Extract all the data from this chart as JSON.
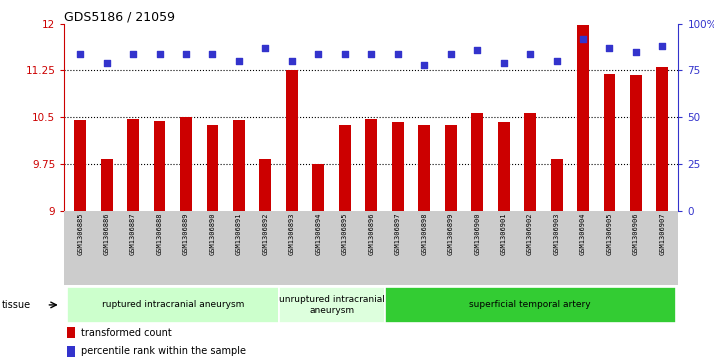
{
  "title": "GDS5186 / 21059",
  "samples": [
    "GSM1306885",
    "GSM1306886",
    "GSM1306887",
    "GSM1306888",
    "GSM1306889",
    "GSM1306890",
    "GSM1306891",
    "GSM1306892",
    "GSM1306893",
    "GSM1306894",
    "GSM1306895",
    "GSM1306896",
    "GSM1306897",
    "GSM1306898",
    "GSM1306899",
    "GSM1306900",
    "GSM1306901",
    "GSM1306902",
    "GSM1306903",
    "GSM1306904",
    "GSM1306905",
    "GSM1306906",
    "GSM1306907"
  ],
  "bar_values": [
    10.45,
    9.82,
    10.47,
    10.43,
    10.5,
    10.38,
    10.45,
    9.82,
    11.25,
    9.75,
    10.38,
    10.47,
    10.42,
    10.38,
    10.38,
    10.56,
    10.42,
    10.56,
    9.82,
    11.97,
    11.19,
    11.17,
    11.31
  ],
  "percentile_values": [
    84,
    79,
    84,
    84,
    84,
    84,
    80,
    87,
    80,
    84,
    84,
    84,
    84,
    78,
    84,
    86,
    79,
    84,
    80,
    92,
    87,
    85,
    88
  ],
  "bar_color": "#cc0000",
  "dot_color": "#3333cc",
  "ylim_left": [
    9,
    12
  ],
  "ylim_right": [
    0,
    100
  ],
  "yticks_left": [
    9,
    9.75,
    10.5,
    11.25,
    12
  ],
  "ytick_labels_left": [
    "9",
    "9.75",
    "10.5",
    "11.25",
    "12"
  ],
  "yticks_right": [
    0,
    25,
    50,
    75,
    100
  ],
  "ytick_labels_right": [
    "0",
    "25",
    "50",
    "75",
    "100%"
  ],
  "hlines": [
    9.75,
    10.5,
    11.25
  ],
  "groups": [
    {
      "label": "ruptured intracranial aneurysm",
      "start": 0,
      "end": 8,
      "color": "#ccffcc"
    },
    {
      "label": "unruptured intracranial\naneurysm",
      "start": 8,
      "end": 12,
      "color": "#ddffdd"
    },
    {
      "label": "superficial temporal artery",
      "start": 12,
      "end": 23,
      "color": "#33cc33"
    }
  ],
  "legend_bar_label": "transformed count",
  "legend_dot_label": "percentile rank within the sample",
  "tissue_label": "tissue",
  "label_bg_color": "#cccccc",
  "plot_bg_color": "#ffffff"
}
